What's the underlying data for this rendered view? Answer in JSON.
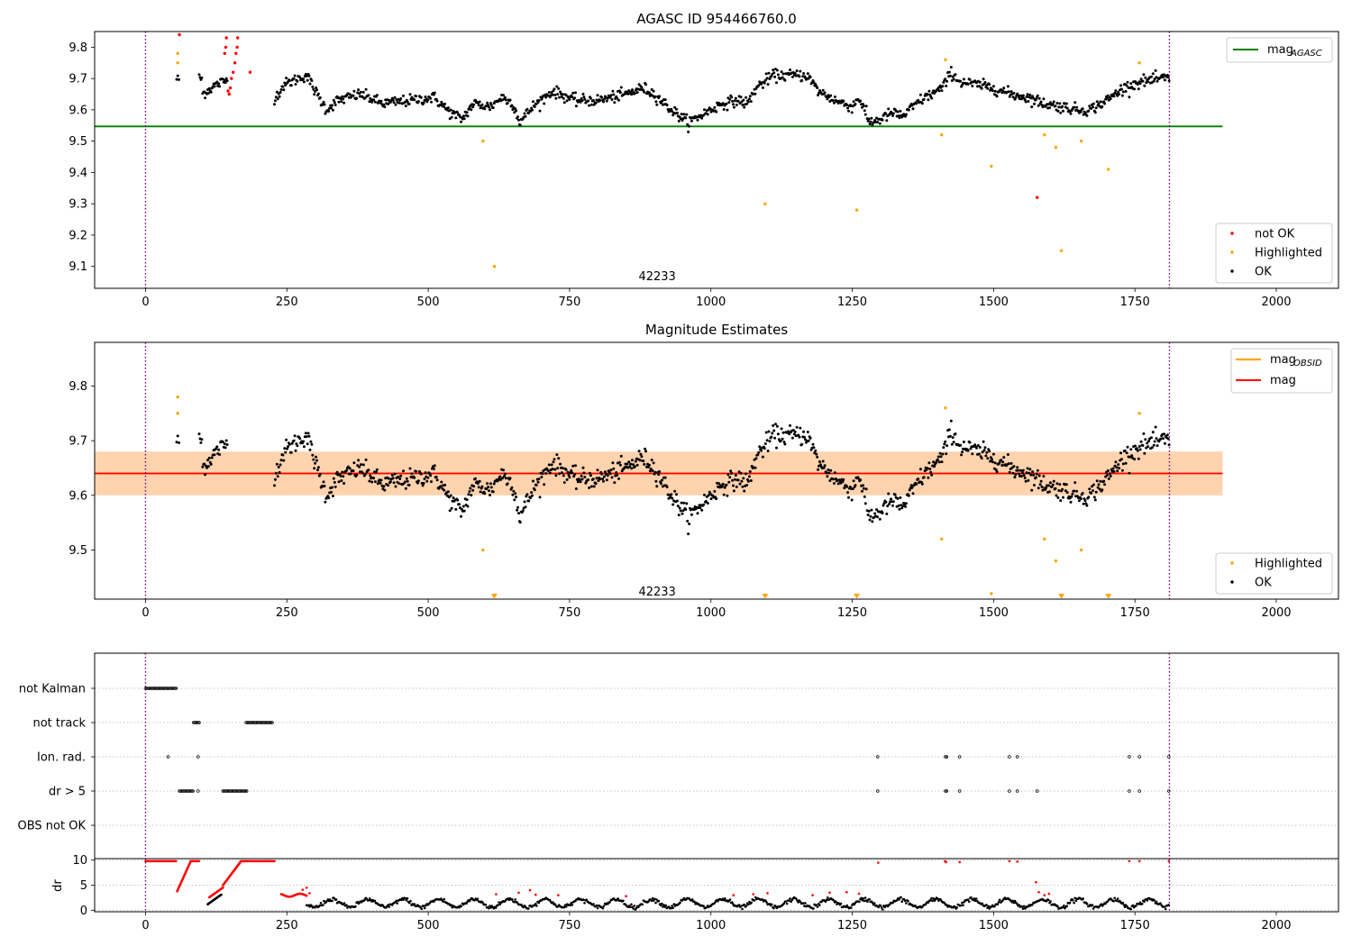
{
  "chart_data": [
    {
      "type": "scatter",
      "title": "AGASC ID 954466760.0",
      "xlim": [
        -90,
        2110
      ],
      "ylim": [
        9.03,
        9.85
      ],
      "xticks": [
        0,
        250,
        500,
        750,
        1000,
        1250,
        1500,
        1750,
        2000
      ],
      "yticks": [
        9.1,
        9.2,
        9.3,
        9.4,
        9.5,
        9.6,
        9.7,
        9.8
      ],
      "vlines": [
        0,
        1811
      ],
      "annotation": {
        "text": "42233",
        "x": 905,
        "y": 9.07
      },
      "hline": {
        "name": "mag_AGASC",
        "value": 9.547,
        "x_range": [
          -90,
          1905
        ],
        "color": "#008000"
      },
      "legend_top": [
        {
          "label": "mag",
          "sub": "AGASC",
          "color": "#008000",
          "kind": "line"
        }
      ],
      "legend_bottom": [
        {
          "label": "not OK",
          "color": "#ff0000",
          "kind": "dot"
        },
        {
          "label": "Highlighted",
          "color": "#ffa500",
          "kind": "dot"
        },
        {
          "label": "OK",
          "color": "#000000",
          "kind": "dot"
        }
      ],
      "series": [
        {
          "name": "not OK",
          "color": "#ff0000",
          "points": [
            [
              60,
              9.84
            ],
            [
              140,
              9.78
            ],
            [
              142,
              9.8
            ],
            [
              143,
              9.83
            ],
            [
              146,
              9.66
            ],
            [
              148,
              9.65
            ],
            [
              150,
              9.67
            ],
            [
              152,
              9.7
            ],
            [
              155,
              9.72
            ],
            [
              158,
              9.75
            ],
            [
              160,
              9.78
            ],
            [
              162,
              9.8
            ],
            [
              163,
              9.83
            ],
            [
              185,
              9.72
            ],
            [
              1577,
              9.32
            ]
          ]
        },
        {
          "name": "Highlighted",
          "color": "#ffa500",
          "points": [
            [
              57,
              9.78
            ],
            [
              57,
              9.75
            ],
            [
              597,
              9.5
            ],
            [
              617,
              9.1
            ],
            [
              1096,
              9.3
            ],
            [
              1258,
              9.28
            ],
            [
              1408,
              9.52
            ],
            [
              1415,
              9.76
            ],
            [
              1496,
              9.42
            ],
            [
              1590,
              9.52
            ],
            [
              1610,
              9.48
            ],
            [
              1620,
              9.15
            ],
            [
              1655,
              9.5
            ],
            [
              1703,
              9.41
            ],
            [
              1758,
              9.75
            ]
          ]
        }
      ]
    },
    {
      "type": "scatter",
      "title": "Magnitude Estimates",
      "xlim": [
        -90,
        2110
      ],
      "ylim": [
        9.41,
        9.88
      ],
      "xticks": [
        0,
        250,
        500,
        750,
        1000,
        1250,
        1500,
        1750,
        2000
      ],
      "yticks": [
        9.5,
        9.6,
        9.7,
        9.8
      ],
      "vlines": [
        0,
        1811
      ],
      "annotation": {
        "text": "42233",
        "x": 905,
        "y": 9.425
      },
      "hline": {
        "name": "mag",
        "value": 9.64,
        "x_range": [
          -90,
          1905
        ],
        "color": "#ff0000"
      },
      "bands": [
        {
          "name": "mag band",
          "y0": 9.6,
          "y1": 9.68,
          "x0": -90,
          "x1": 1905,
          "color": "#ffc0cb",
          "opacity": 0.45
        },
        {
          "name": "mag_OBSID band",
          "y0": 9.6,
          "y1": 9.68,
          "x0": -90,
          "x1": 1905,
          "color": "#ffa500",
          "opacity": 0.25
        }
      ],
      "legend_top": [
        {
          "label": "mag",
          "sub": "OBSID",
          "color": "#ffa500",
          "kind": "line"
        },
        {
          "label": "mag",
          "sub": "",
          "color": "#ff0000",
          "kind": "line"
        }
      ],
      "legend_bottom": [
        {
          "label": "Highlighted",
          "color": "#ffa500",
          "kind": "dot"
        },
        {
          "label": "OK",
          "color": "#000000",
          "kind": "dot"
        }
      ],
      "series": [
        {
          "name": "Highlighted",
          "color": "#ffa500",
          "points": [
            [
              57,
              9.78
            ],
            [
              57,
              9.75
            ],
            [
              597,
              9.5
            ],
            [
              1408,
              9.52
            ],
            [
              1415,
              9.76
            ],
            [
              1496,
              9.42
            ],
            [
              1590,
              9.52
            ],
            [
              1610,
              9.48
            ],
            [
              1655,
              9.5
            ],
            [
              1758,
              9.75
            ]
          ]
        },
        {
          "name": "below-range markers",
          "color": "#ffa500",
          "marker": "triangle-down",
          "points": [
            [
              617,
              9.413
            ],
            [
              1096,
              9.413
            ],
            [
              1258,
              9.413
            ],
            [
              1620,
              9.413
            ],
            [
              1703,
              9.413
            ]
          ]
        }
      ]
    },
    {
      "type": "scatter",
      "title": "",
      "xlim": [
        -90,
        2110
      ],
      "categories": [
        "not Kalman",
        "not track",
        "Ion. rad.",
        "dr > 5",
        "OBS not OK"
      ],
      "events": {
        "not Kalman": [
          [
            0,
            55
          ]
        ],
        "not track": [
          [
            85,
            95
          ],
          [
            178,
            225
          ]
        ],
        "Ion. rad.": [
          [
            40,
            40
          ],
          [
            93,
            93
          ],
          [
            1295,
            1295
          ],
          [
            1415,
            1418
          ],
          [
            1440,
            1440
          ],
          [
            1528,
            1528
          ],
          [
            1542,
            1542
          ],
          [
            1740,
            1740
          ],
          [
            1758,
            1758
          ],
          [
            1810,
            1810
          ]
        ],
        "dr > 5": [
          [
            60,
            85
          ],
          [
            93,
            93
          ],
          [
            137,
            180
          ],
          [
            1295,
            1295
          ],
          [
            1415,
            1418
          ],
          [
            1440,
            1440
          ],
          [
            1528,
            1528
          ],
          [
            1542,
            1542
          ],
          [
            1577,
            1577
          ],
          [
            1740,
            1740
          ],
          [
            1758,
            1758
          ],
          [
            1810,
            1810
          ]
        ],
        "OBS not OK": []
      },
      "vlines": [
        0,
        1811
      ]
    },
    {
      "type": "scatter",
      "title": "",
      "ylabel": "dr",
      "xlim": [
        -90,
        2110
      ],
      "ylim": [
        -0.3,
        10.3
      ],
      "xticks": [
        0,
        250,
        500,
        750,
        1000,
        1250,
        1500,
        1750,
        2000
      ],
      "xtick_labels": [
        "0",
        "250",
        "500",
        "750",
        "1000",
        "1250",
        "1500",
        "1750",
        "2000"
      ],
      "yticks": [
        0,
        5,
        10
      ],
      "ytick_labels": [
        "0",
        "5",
        "10"
      ],
      "vlines": [
        0,
        1811
      ],
      "red_points_extra": [
        [
          278,
          4.1
        ],
        [
          285,
          4.5
        ],
        [
          290,
          3.4
        ],
        [
          620,
          3.2
        ],
        [
          660,
          3.5
        ],
        [
          680,
          4.0
        ],
        [
          690,
          3.1
        ],
        [
          730,
          3.0
        ],
        [
          850,
          2.8
        ],
        [
          1040,
          3.0
        ],
        [
          1075,
          3.2
        ],
        [
          1100,
          3.4
        ],
        [
          1180,
          3.0
        ],
        [
          1210,
          3.5
        ],
        [
          1240,
          3.6
        ],
        [
          1262,
          3.3
        ],
        [
          1296,
          9.5
        ],
        [
          1414,
          9.8
        ],
        [
          1416,
          9.6
        ],
        [
          1440,
          9.6
        ],
        [
          1528,
          9.8
        ],
        [
          1542,
          9.7
        ],
        [
          1575,
          5.6
        ],
        [
          1580,
          3.6
        ],
        [
          1590,
          3.0
        ],
        [
          1598,
          3.3
        ],
        [
          1740,
          9.8
        ],
        [
          1758,
          9.8
        ],
        [
          1810,
          9.8
        ]
      ]
    }
  ]
}
